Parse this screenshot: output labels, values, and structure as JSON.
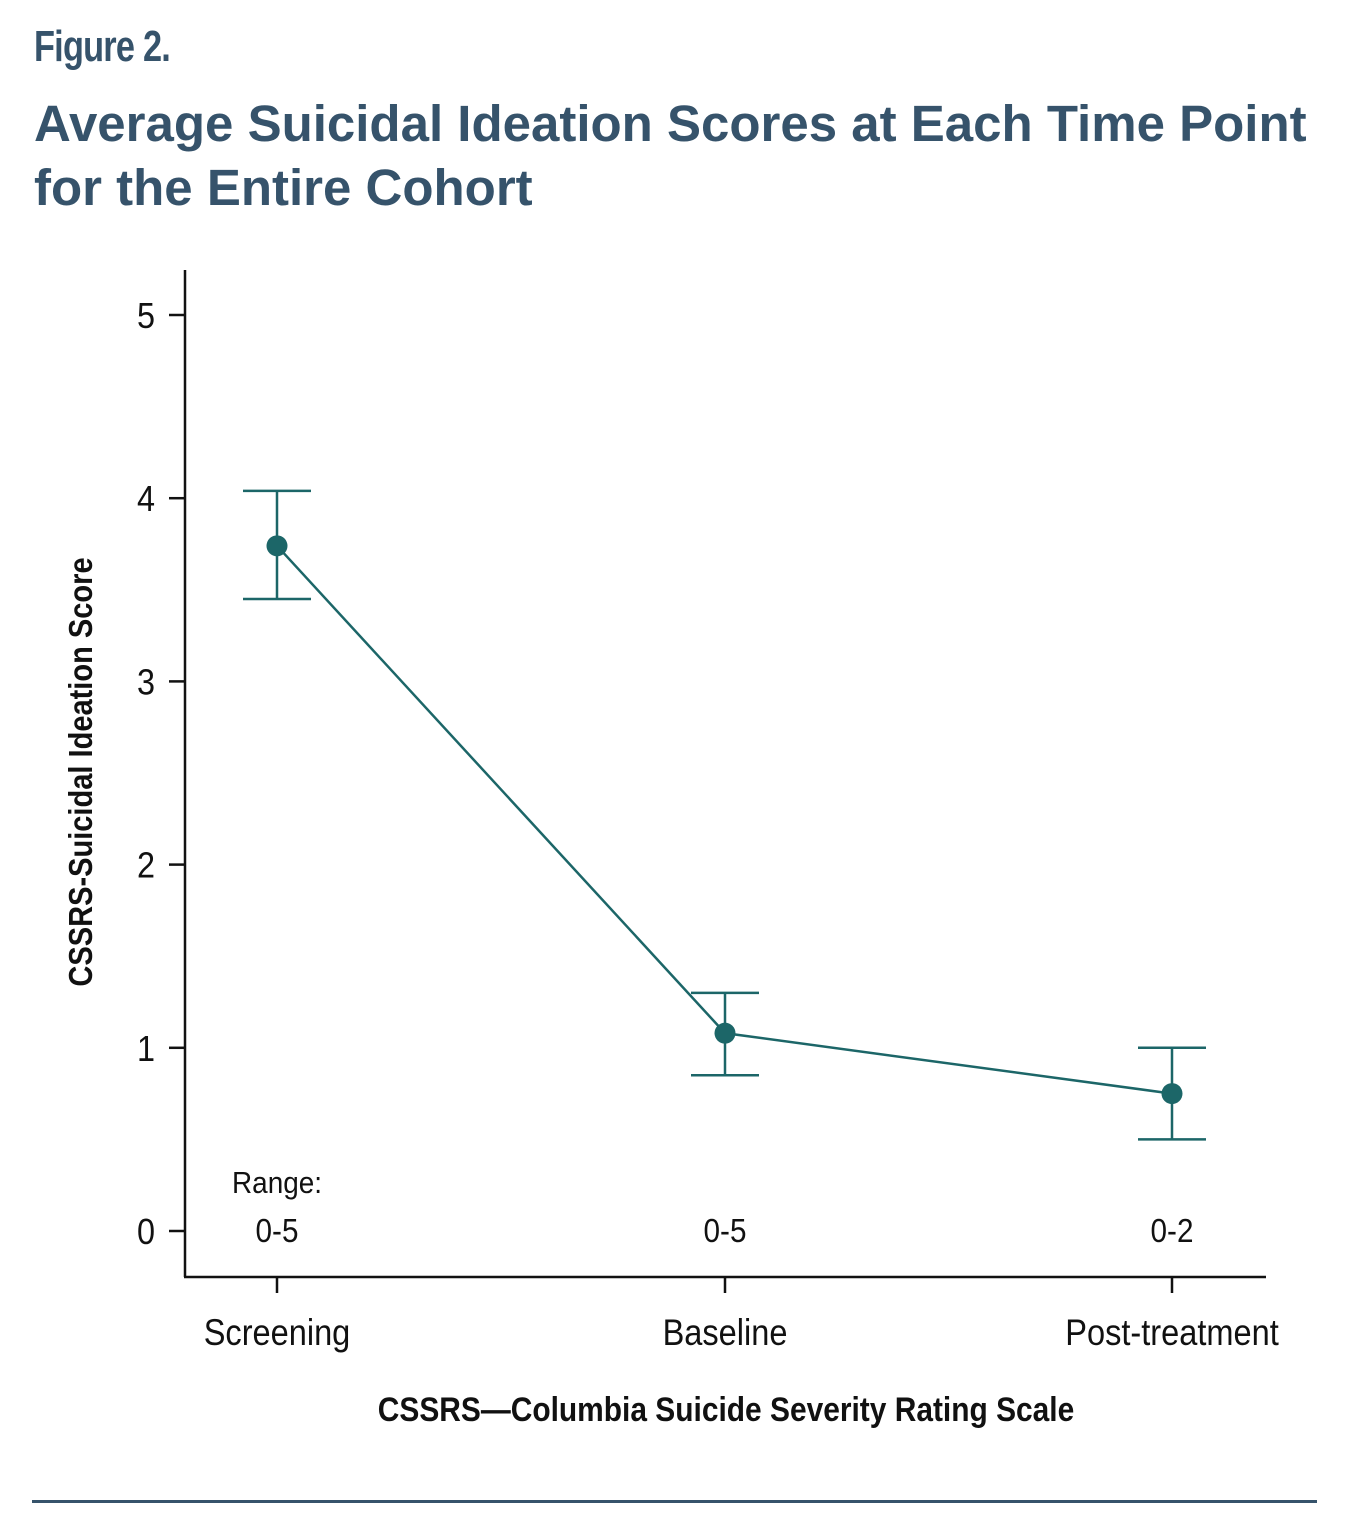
{
  "figure_label": "Figure 2.",
  "title": "Average Suicidal Ideation Scores at Each Time Point for the Entire Cohort",
  "colors": {
    "title": "#36536b",
    "series": "#1c6668",
    "axis": "#111111"
  },
  "range_label": "Range:",
  "chart_data": {
    "type": "line",
    "categories": [
      "Screening",
      "Baseline",
      "Post-treatment"
    ],
    "series": [
      {
        "values": [
          3.74,
          1.08,
          0.75
        ],
        "error_low": [
          3.45,
          0.85,
          0.5
        ],
        "error_high": [
          4.04,
          1.3,
          1.0
        ]
      }
    ],
    "category_ranges": [
      "0-5",
      "0-5",
      "0-2"
    ],
    "ylabel": "CSSRS-Suicidal Ideation Score",
    "xlabel": "CSSRS—Columbia Suicide Severity Rating Scale",
    "ylim": [
      0,
      5
    ],
    "yticks": [
      0,
      1,
      2,
      3,
      4,
      5
    ],
    "grid": false,
    "legend": "none"
  }
}
